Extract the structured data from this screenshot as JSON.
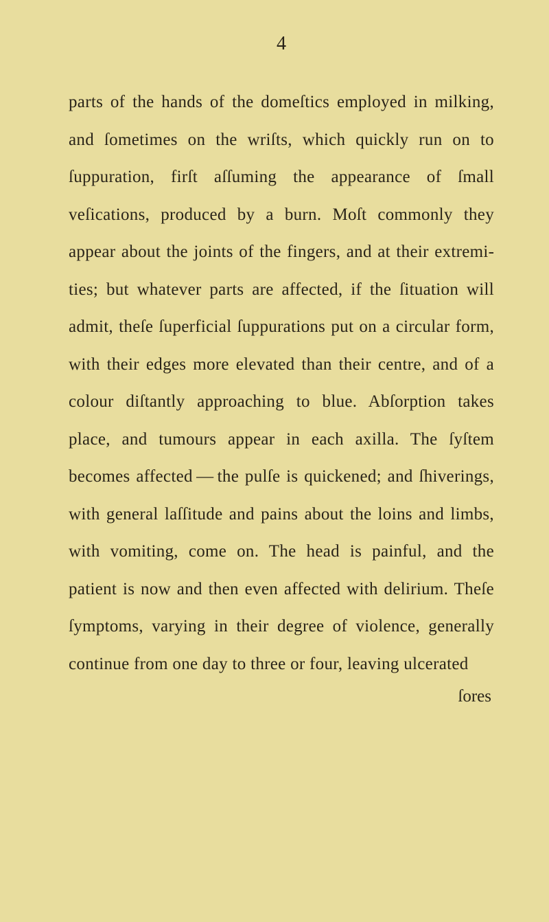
{
  "page": {
    "number": "4",
    "background_color": "#e8dd9e",
    "text_color": "#2a2419",
    "font_family": "Georgia, 'Times New Roman', serif",
    "body_fontsize": 25,
    "line_height": 2.18,
    "page_number_fontsize": 28
  },
  "body": {
    "text": "parts of the hands of the domeſtics employed in milking, and ſometimes on the wriſts, which quickly run on to ſuppuration, firſt aſſuming the appearance of ſmall veſications, produced by a burn. Moſt commonly they appear about the joints of the fingers, and at their extremi­ties; but whatever parts are affected, if the ſituation will admit, theſe ſuperficial ſuppura­tions put on a circular form, with their edges more elevated than their centre, and of a colour diſtantly approaching to blue. Abſorption takes place, and tumours appear in each axilla. The ſyſtem becomes affected — the pulſe is quickened; and ſhiverings, with general laſſi­tude and pains about the loins and limbs, with vomiting, come on. The head is painful, and the patient is now and then even affected with delirium. Theſe ſymptoms, varying in their degree of violence, generally continue from one day to three or four, leaving ulcerated",
    "catchword": "ſores"
  }
}
